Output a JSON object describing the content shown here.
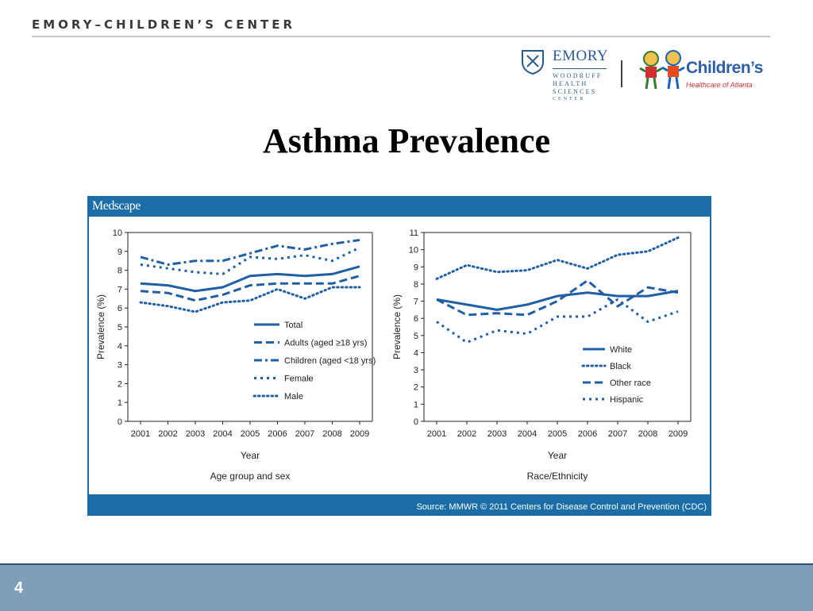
{
  "header": {
    "org_name": "EMORY–CHILDREN’S CENTER"
  },
  "logos": {
    "emory_name": "EMORY",
    "emory_sub": [
      "WOODRUFF",
      "HEALTH",
      "SCIENCES",
      "CENTER"
    ],
    "childrens_name": "Children’s",
    "childrens_sub": "Healthcare of Atlanta"
  },
  "slide": {
    "title": "Asthma Prevalence",
    "page_number": "4"
  },
  "figure": {
    "publisher": "Medscape",
    "source": "Source: MMWR © 2011 Centers for Disease Control and Prevention (CDC)",
    "line_color": "#1f5fa6"
  },
  "chart_data": [
    {
      "type": "line",
      "x": [
        "2001",
        "2002",
        "2003",
        "2004",
        "2005",
        "2006",
        "2007",
        "2008",
        "2009"
      ],
      "ylim": [
        0,
        10
      ],
      "yticks": [
        "0",
        "1",
        "2",
        "3",
        "4",
        "5",
        "6",
        "7",
        "8",
        "9",
        "10"
      ],
      "ylabel": "Prevalence (%)",
      "xlabel": "Year",
      "subtitle": "Age group and sex",
      "legend": "center-right",
      "series": [
        {
          "name": "Total",
          "style": "solid",
          "values": [
            7.3,
            7.2,
            6.9,
            7.1,
            7.7,
            7.8,
            7.7,
            7.8,
            8.2
          ]
        },
        {
          "name": "Adults (aged ≥18 yrs)",
          "style": "dash",
          "values": [
            6.9,
            6.8,
            6.4,
            6.7,
            7.2,
            7.3,
            7.3,
            7.3,
            7.7
          ]
        },
        {
          "name": "Children (aged <18 yrs)",
          "style": "dashdot",
          "values": [
            8.7,
            8.3,
            8.5,
            8.5,
            8.9,
            9.3,
            9.1,
            9.4,
            9.6
          ]
        },
        {
          "name": "Female",
          "style": "sqdot",
          "values": [
            8.3,
            8.1,
            7.9,
            7.8,
            8.7,
            8.6,
            8.8,
            8.5,
            9.2
          ]
        },
        {
          "name": "Male",
          "style": "dot",
          "values": [
            6.3,
            6.1,
            5.8,
            6.3,
            6.4,
            7.0,
            6.5,
            7.1,
            7.1
          ]
        }
      ]
    },
    {
      "type": "line",
      "x": [
        "2001",
        "2002",
        "2003",
        "2004",
        "2005",
        "2006",
        "2007",
        "2008",
        "2009"
      ],
      "ylim": [
        0,
        11
      ],
      "yticks": [
        "0",
        "1",
        "2",
        "3",
        "4",
        "5",
        "6",
        "7",
        "8",
        "9",
        "10",
        "11"
      ],
      "ylabel": "Prevalence (%)",
      "xlabel": "Year",
      "subtitle": "Race/Ethnicity",
      "legend": "bottom-right",
      "series": [
        {
          "name": "White",
          "style": "solid",
          "values": [
            7.1,
            6.8,
            6.5,
            6.8,
            7.3,
            7.5,
            7.3,
            7.3,
            7.6
          ]
        },
        {
          "name": "Black",
          "style": "dot",
          "values": [
            8.3,
            9.1,
            8.7,
            8.8,
            9.4,
            8.9,
            9.7,
            9.9,
            10.7
          ]
        },
        {
          "name": "Other race",
          "style": "dash",
          "values": [
            7.1,
            6.2,
            6.3,
            6.2,
            7.0,
            8.2,
            6.7,
            7.8,
            7.5
          ]
        },
        {
          "name": "Hispanic",
          "style": "sqdot",
          "values": [
            5.8,
            4.6,
            5.3,
            5.1,
            6.1,
            6.1,
            7.1,
            5.8,
            6.4
          ]
        }
      ]
    }
  ]
}
